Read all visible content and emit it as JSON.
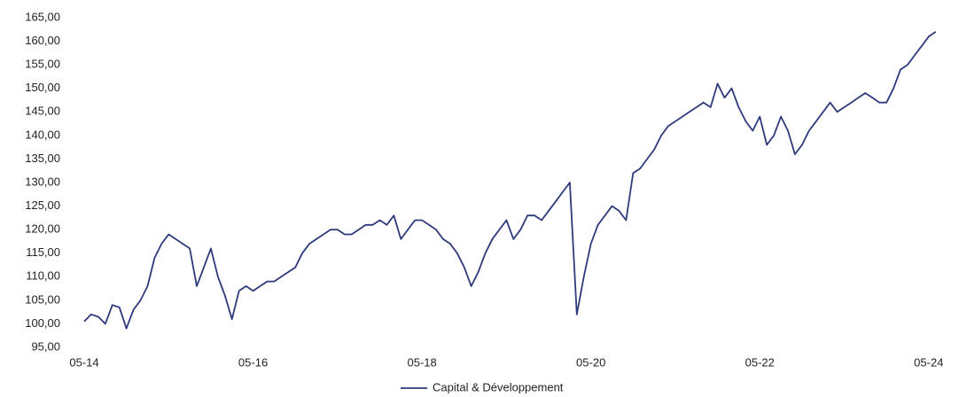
{
  "chart_data": {
    "type": "line",
    "categories": [
      "05-14",
      null,
      null,
      null,
      null,
      null,
      null,
      null,
      null,
      null,
      null,
      null,
      null,
      null,
      null,
      null,
      null,
      null,
      null,
      null,
      null,
      null,
      null,
      null,
      "05-16",
      null,
      null,
      null,
      null,
      null,
      null,
      null,
      null,
      null,
      null,
      null,
      null,
      null,
      null,
      null,
      null,
      null,
      null,
      null,
      null,
      null,
      null,
      null,
      "05-18",
      null,
      null,
      null,
      null,
      null,
      null,
      null,
      null,
      null,
      null,
      null,
      null,
      null,
      null,
      null,
      null,
      null,
      null,
      null,
      null,
      null,
      null,
      null,
      "05-20",
      null,
      null,
      null,
      null,
      null,
      null,
      null,
      null,
      null,
      null,
      null,
      null,
      null,
      null,
      null,
      null,
      null,
      null,
      null,
      null,
      null,
      null,
      null,
      "05-22",
      null,
      null,
      null,
      null,
      null,
      null,
      null,
      null,
      null,
      null,
      null,
      null,
      null,
      null,
      null,
      null,
      null,
      null,
      null,
      null,
      null,
      null,
      null,
      "05-24",
      null
    ],
    "series": [
      {
        "name": "Capital & Développement",
        "color": "#2e3a7c",
        "values": [
          100.5,
          102,
          101.5,
          100,
          104,
          103.5,
          99,
          103,
          105,
          108,
          114,
          117,
          119,
          118,
          117,
          116,
          108,
          112,
          116,
          110,
          106,
          101,
          107,
          108,
          107,
          108,
          109,
          109,
          110,
          111,
          112,
          115,
          117,
          118,
          119,
          120,
          120,
          119,
          119,
          120,
          121,
          121,
          122,
          121,
          123,
          118,
          120,
          122,
          122,
          121,
          120,
          118,
          117,
          115,
          112,
          108,
          111,
          115,
          118,
          120,
          122,
          118,
          120,
          123,
          123,
          122,
          124,
          126,
          128,
          130,
          102,
          110,
          117,
          121,
          123,
          125,
          124,
          122,
          132,
          133,
          135,
          137,
          140,
          142,
          143,
          144,
          145,
          146,
          147,
          146,
          151,
          148,
          150,
          146,
          143,
          141,
          144,
          138,
          140,
          144,
          141,
          136,
          138,
          141,
          143,
          145,
          147,
          145,
          146,
          147,
          148,
          149,
          148,
          147,
          147,
          150,
          154,
          155,
          157,
          159,
          161,
          162
        ]
      }
    ],
    "ylim": [
      95,
      165
    ],
    "yticks": [
      {
        "value": 95,
        "label": "95,00"
      },
      {
        "value": 100,
        "label": "100,00"
      },
      {
        "value": 105,
        "label": "105,00"
      },
      {
        "value": 110,
        "label": "110,00"
      },
      {
        "value": 115,
        "label": "115,00"
      },
      {
        "value": 120,
        "label": "120,00"
      },
      {
        "value": 125,
        "label": "125,00"
      },
      {
        "value": 130,
        "label": "130,00"
      },
      {
        "value": 135,
        "label": "135,00"
      },
      {
        "value": 140,
        "label": "140,00"
      },
      {
        "value": 145,
        "label": "145,00"
      },
      {
        "value": 150,
        "label": "150,00"
      },
      {
        "value": 155,
        "label": "155,00"
      },
      {
        "value": 160,
        "label": "160,00"
      },
      {
        "value": 165,
        "label": "165,00"
      }
    ],
    "grid": false,
    "legend": "bottom"
  }
}
